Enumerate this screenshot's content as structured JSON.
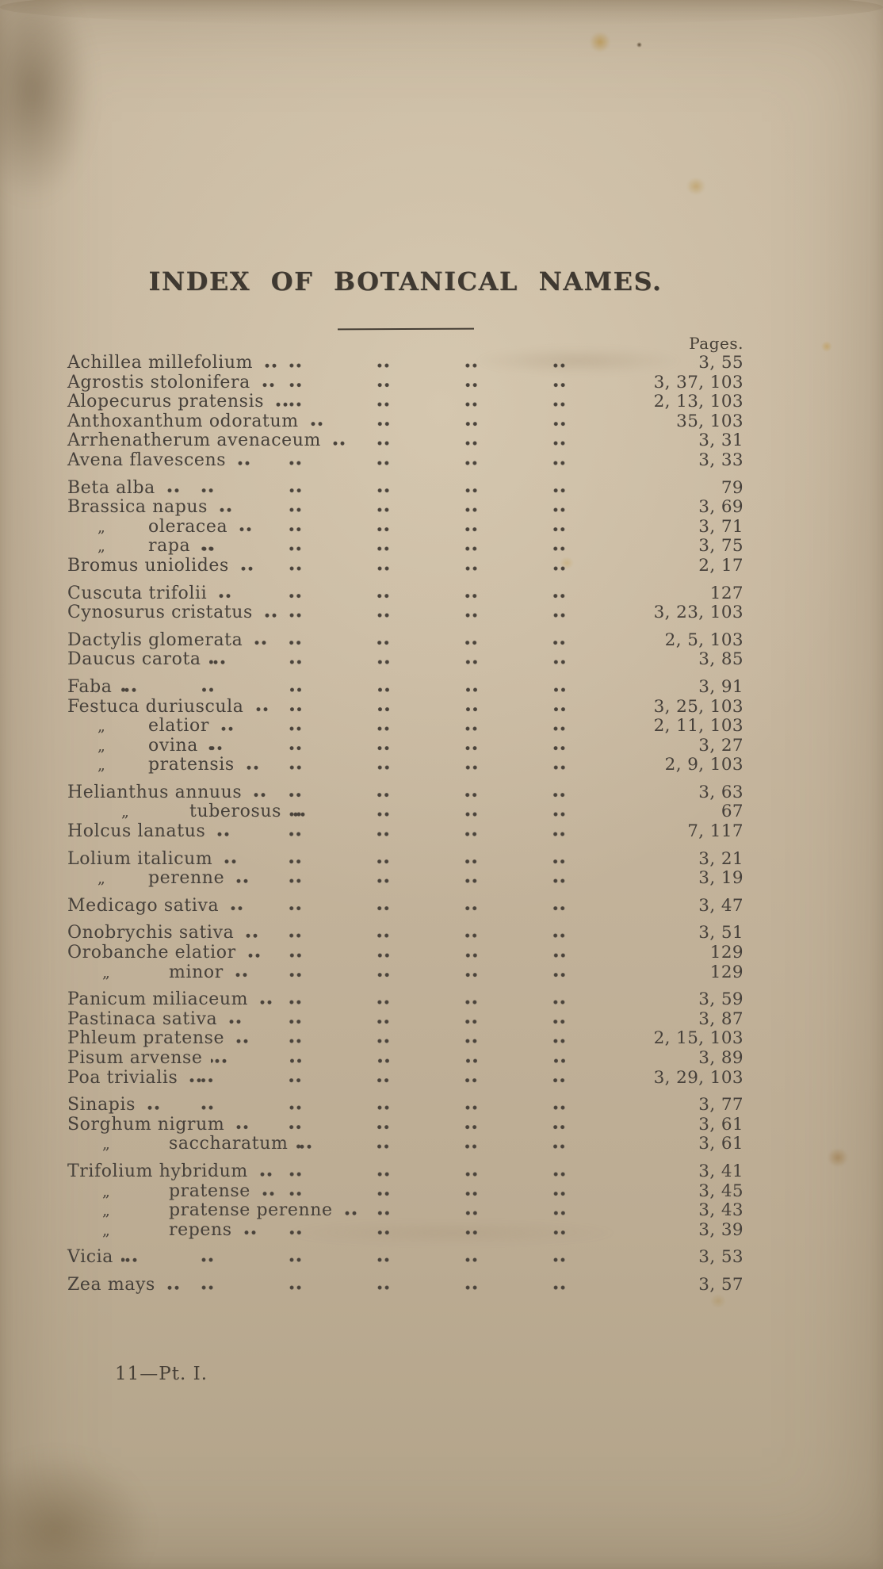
{
  "page": {
    "title": "INDEX OF BOTANICAL NAMES.",
    "pages_header": "Pages.",
    "footer": "11—Pt. I.",
    "ditto_mark": "„",
    "ink_color": "#46403a",
    "paper_color": "#c6b69e"
  },
  "index": {
    "groups": [
      {
        "entries": [
          {
            "name": "Achillea millefolium",
            "pages": "3, 55",
            "indent": 0
          },
          {
            "name": "Agrostis stolonifera",
            "pages": "3, 37, 103",
            "indent": 0
          },
          {
            "name": "Alopecurus pratensis",
            "pages": "2, 13, 103",
            "indent": 0
          },
          {
            "name": "Anthoxanthum odoratum",
            "pages": "35, 103",
            "indent": 0
          },
          {
            "name": "Arrhenatherum avenaceum",
            "pages": "3, 31",
            "indent": 0
          },
          {
            "name": "Avena flavescens",
            "pages": "3, 33",
            "indent": 0
          }
        ]
      },
      {
        "entries": [
          {
            "name": "Beta alba",
            "pages": "79",
            "indent": 0
          },
          {
            "name": "Brassica napus",
            "pages": "3, 69",
            "indent": 0
          },
          {
            "name": "oleracea",
            "pages": "3, 71",
            "indent": 1
          },
          {
            "name": "rapa",
            "pages": "3, 75",
            "indent": 1
          },
          {
            "name": "Bromus uniolides",
            "pages": "2, 17",
            "indent": 0
          }
        ]
      },
      {
        "entries": [
          {
            "name": "Cuscuta trifolii",
            "pages": "127",
            "indent": 0
          },
          {
            "name": "Cynosurus cristatus",
            "pages": "3, 23, 103",
            "indent": 0
          }
        ]
      },
      {
        "entries": [
          {
            "name": "Dactylis glomerata",
            "pages": "2, 5, 103",
            "indent": 0
          },
          {
            "name": "Daucus carota",
            "pages": "3, 85",
            "indent": 0
          }
        ]
      },
      {
        "entries": [
          {
            "name": "Faba",
            "pages": "3, 91",
            "indent": 0
          },
          {
            "name": "Festuca duriuscula",
            "pages": "3, 25, 103",
            "indent": 0
          },
          {
            "name": "elatior",
            "pages": "2, 11, 103",
            "indent": 1
          },
          {
            "name": "ovina",
            "pages": "3, 27",
            "indent": 1
          },
          {
            "name": "pratensis",
            "pages": "2, 9, 103",
            "indent": 1
          }
        ]
      },
      {
        "entries": [
          {
            "name": "Helianthus annuus",
            "pages": "3, 63",
            "indent": 0
          },
          {
            "name": "tuberosus",
            "pages": "67",
            "indent": 3
          },
          {
            "name": "Holcus lanatus",
            "pages": "7, 117",
            "indent": 0
          }
        ]
      },
      {
        "entries": [
          {
            "name": "Lolium italicum",
            "pages": "3, 21",
            "indent": 0
          },
          {
            "name": "perenne",
            "pages": "3, 19",
            "indent": 1
          }
        ]
      },
      {
        "entries": [
          {
            "name": "Medicago sativa",
            "pages": "3, 47",
            "indent": 0
          }
        ]
      },
      {
        "entries": [
          {
            "name": "Onobrychis sativa",
            "pages": "3, 51",
            "indent": 0
          },
          {
            "name": "Orobanche elatior",
            "pages": "129",
            "indent": 0
          },
          {
            "name": "minor",
            "pages": "129",
            "indent": 2
          }
        ]
      },
      {
        "entries": [
          {
            "name": "Panicum miliaceum",
            "pages": "3, 59",
            "indent": 0
          },
          {
            "name": "Pastinaca sativa",
            "pages": "3, 87",
            "indent": 0
          },
          {
            "name": "Phleum pratense",
            "pages": "2, 15, 103",
            "indent": 0
          },
          {
            "name": "Pisum arvense",
            "pages": "3, 89",
            "indent": 0
          },
          {
            "name": "Poa trivialis",
            "pages": "3, 29, 103",
            "indent": 0
          }
        ]
      },
      {
        "entries": [
          {
            "name": "Sinapis",
            "pages": "3, 77",
            "indent": 0
          },
          {
            "name": "Sorghum nigrum",
            "pages": "3, 61",
            "indent": 0
          },
          {
            "name": "saccharatum",
            "pages": "3, 61",
            "indent": 2
          }
        ]
      },
      {
        "entries": [
          {
            "name": "Trifolium hybridum",
            "pages": "3, 41",
            "indent": 0
          },
          {
            "name": "pratense",
            "pages": "3, 45",
            "indent": 2
          },
          {
            "name": "pratense perenne",
            "pages": "3, 43",
            "indent": 2
          },
          {
            "name": "repens",
            "pages": "3, 39",
            "indent": 2
          }
        ]
      },
      {
        "entries": [
          {
            "name": "Vicia",
            "pages": "3, 53",
            "indent": 0
          }
        ]
      },
      {
        "entries": [
          {
            "name": "Zea mays",
            "pages": "3, 57",
            "indent": 0
          }
        ]
      }
    ]
  }
}
